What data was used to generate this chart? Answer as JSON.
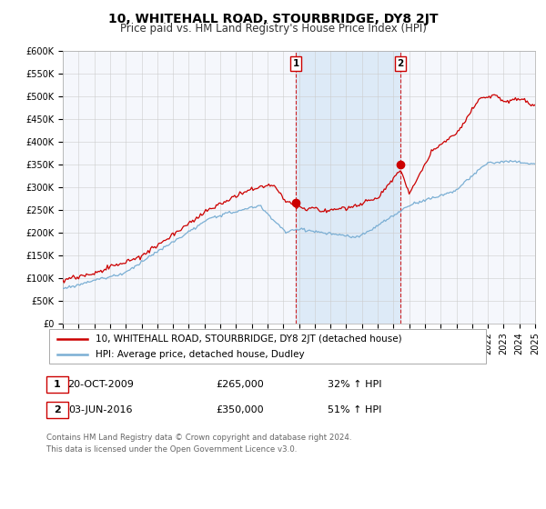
{
  "title": "10, WHITEHALL ROAD, STOURBRIDGE, DY8 2JT",
  "subtitle": "Price paid vs. HM Land Registry's House Price Index (HPI)",
  "ylim": [
    0,
    600000
  ],
  "xlim": [
    1995,
    2025
  ],
  "yticks": [
    0,
    50000,
    100000,
    150000,
    200000,
    250000,
    300000,
    350000,
    400000,
    450000,
    500000,
    550000,
    600000
  ],
  "ytick_labels": [
    "£0",
    "£50K",
    "£100K",
    "£150K",
    "£200K",
    "£250K",
    "£300K",
    "£350K",
    "£400K",
    "£450K",
    "£500K",
    "£550K",
    "£600K"
  ],
  "xticks": [
    1995,
    1996,
    1997,
    1998,
    1999,
    2000,
    2001,
    2002,
    2003,
    2004,
    2005,
    2006,
    2007,
    2008,
    2009,
    2010,
    2011,
    2012,
    2013,
    2014,
    2015,
    2016,
    2017,
    2018,
    2019,
    2020,
    2021,
    2022,
    2023,
    2024,
    2025
  ],
  "property_color": "#cc0000",
  "hpi_color": "#7bafd4",
  "span_color": "#ddeaf7",
  "background_color": "#f5f7fc",
  "plot_bg": "#ffffff",
  "grid_color": "#cccccc",
  "sale1_x": 2009.8,
  "sale1_y": 265000,
  "sale2_x": 2016.45,
  "sale2_y": 350000,
  "sale1_date": "20-OCT-2009",
  "sale1_price": "£265,000",
  "sale1_hpi": "32% ↑ HPI",
  "sale2_date": "03-JUN-2016",
  "sale2_price": "£350,000",
  "sale2_hpi": "51% ↑ HPI",
  "legend_property": "10, WHITEHALL ROAD, STOURBRIDGE, DY8 2JT (detached house)",
  "legend_hpi": "HPI: Average price, detached house, Dudley",
  "footnote": "Contains HM Land Registry data © Crown copyright and database right 2024.\nThis data is licensed under the Open Government Licence v3.0.",
  "title_fontsize": 10,
  "subtitle_fontsize": 8.5,
  "tick_fontsize": 7,
  "legend_fontsize": 7.5,
  "table_fontsize": 8
}
